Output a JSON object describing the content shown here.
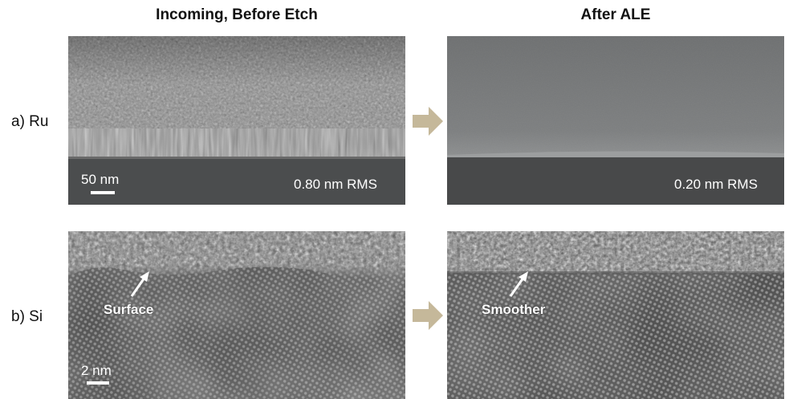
{
  "columns": {
    "before_title": "Incoming, Before Etch",
    "after_title": "After ALE"
  },
  "rows": {
    "ru_label": "a)  Ru",
    "si_label": "b)  Si"
  },
  "ru_before": {
    "scale_label": "50 nm",
    "rms": "0.80 nm RMS"
  },
  "ru_after": {
    "rms": "0.20 nm RMS"
  },
  "si_before": {
    "scale_label": "2 nm",
    "annotation": "Surface"
  },
  "si_after": {
    "annotation": "Smoother"
  },
  "colors": {
    "transition_arrow": "#c5b89a",
    "annotation_text": "#ffffff"
  },
  "icons": {
    "transition": "right-arrow-icon",
    "annotation_pointer": "pointer-arrow-icon"
  }
}
